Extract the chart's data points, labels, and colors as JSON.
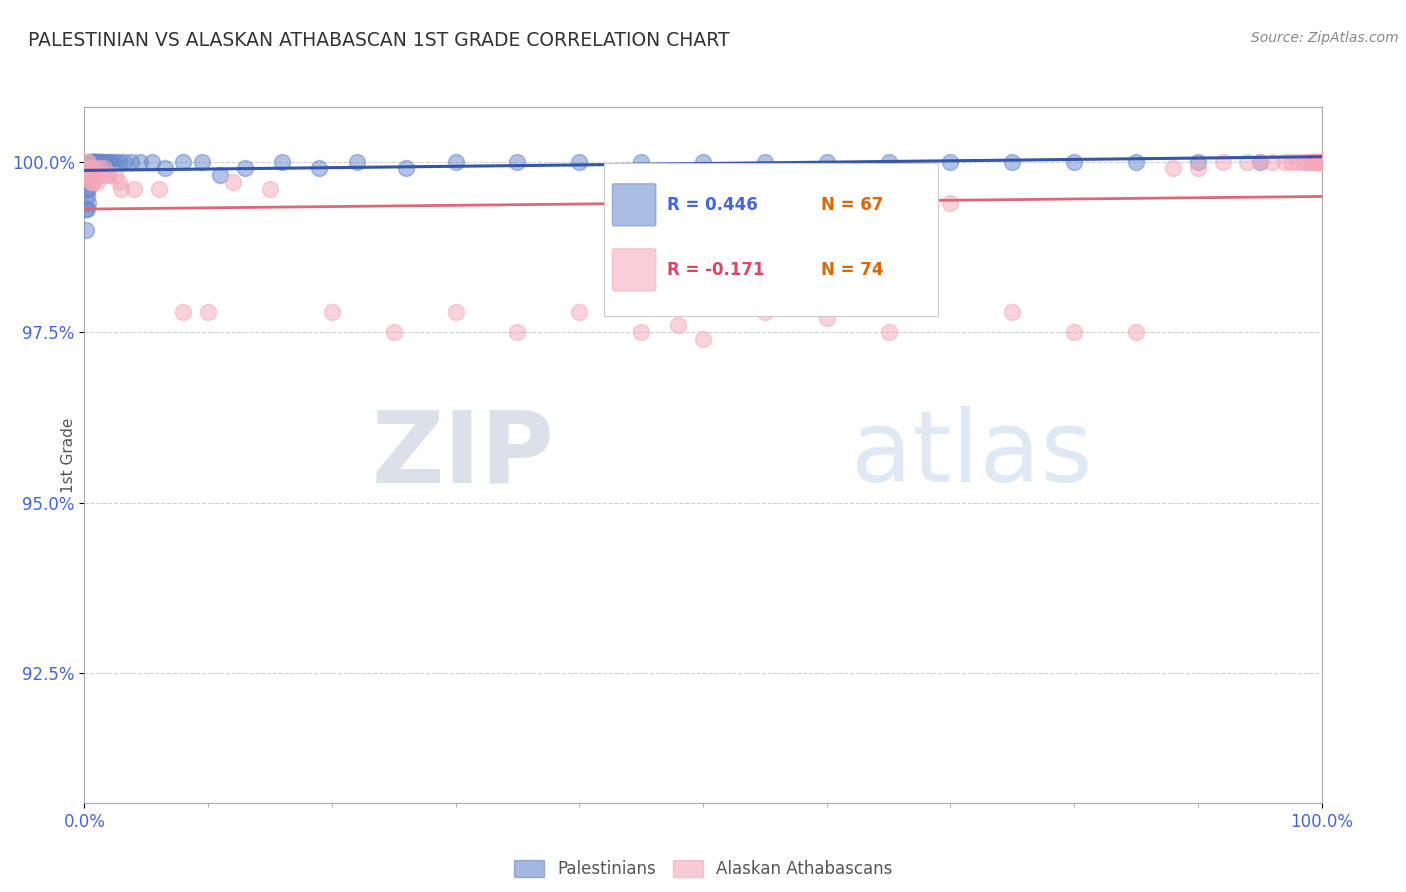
{
  "title": "PALESTINIAN VS ALASKAN ATHABASCAN 1ST GRADE CORRELATION CHART",
  "source": "Source: ZipAtlas.com",
  "ylabel": "1st Grade",
  "xlim": [
    0.0,
    1.0
  ],
  "ylim": [
    0.906,
    1.008
  ],
  "yticks": [
    0.925,
    0.95,
    0.975,
    1.0
  ],
  "ytick_labels": [
    "92.5%",
    "95.0%",
    "97.5%",
    "100.0%"
  ],
  "blue_color": "#6688cc",
  "pink_color": "#f4a8b8",
  "blue_line_color": "#3355aa",
  "pink_line_color": "#dd6677",
  "R_blue": 0.446,
  "N_blue": 67,
  "R_pink": -0.171,
  "N_pink": 74,
  "legend_R_blue_text": "R = 0.446",
  "legend_N_blue_text": "N = 67",
  "legend_R_pink_text": "R = -0.171",
  "legend_N_pink_text": "N = 74",
  "blue_x": [
    0.001,
    0.001,
    0.001,
    0.001,
    0.002,
    0.002,
    0.002,
    0.002,
    0.003,
    0.003,
    0.003,
    0.003,
    0.004,
    0.004,
    0.004,
    0.005,
    0.005,
    0.005,
    0.006,
    0.006,
    0.006,
    0.007,
    0.007,
    0.008,
    0.008,
    0.009,
    0.009,
    0.01,
    0.01,
    0.011,
    0.012,
    0.013,
    0.014,
    0.015,
    0.016,
    0.018,
    0.02,
    0.022,
    0.025,
    0.028,
    0.032,
    0.038,
    0.045,
    0.055,
    0.065,
    0.08,
    0.095,
    0.11,
    0.13,
    0.16,
    0.19,
    0.22,
    0.26,
    0.3,
    0.35,
    0.4,
    0.45,
    0.5,
    0.55,
    0.6,
    0.65,
    0.7,
    0.75,
    0.8,
    0.85,
    0.9,
    0.95
  ],
  "blue_y": [
    0.998,
    0.996,
    0.993,
    0.99,
    0.999,
    0.997,
    0.995,
    0.993,
    0.999,
    0.998,
    0.996,
    0.994,
    1.0,
    0.999,
    0.998,
    1.0,
    0.999,
    0.998,
    1.0,
    1.0,
    0.999,
    1.0,
    1.0,
    1.0,
    1.0,
    1.0,
    1.0,
    1.0,
    1.0,
    1.0,
    1.0,
    1.0,
    1.0,
    1.0,
    1.0,
    1.0,
    1.0,
    1.0,
    1.0,
    1.0,
    1.0,
    1.0,
    1.0,
    1.0,
    0.999,
    1.0,
    1.0,
    0.998,
    0.999,
    1.0,
    0.999,
    1.0,
    0.999,
    1.0,
    1.0,
    1.0,
    1.0,
    1.0,
    1.0,
    1.0,
    1.0,
    1.0,
    1.0,
    1.0,
    1.0,
    1.0,
    1.0
  ],
  "pink_x": [
    0.001,
    0.002,
    0.003,
    0.003,
    0.004,
    0.004,
    0.005,
    0.005,
    0.006,
    0.006,
    0.007,
    0.007,
    0.008,
    0.008,
    0.009,
    0.01,
    0.01,
    0.011,
    0.012,
    0.013,
    0.015,
    0.016,
    0.018,
    0.02,
    0.025,
    0.028,
    0.03,
    0.04,
    0.06,
    0.08,
    0.1,
    0.12,
    0.15,
    0.2,
    0.25,
    0.3,
    0.35,
    0.4,
    0.45,
    0.48,
    0.5,
    0.55,
    0.6,
    0.65,
    0.7,
    0.75,
    0.8,
    0.85,
    0.88,
    0.9,
    0.92,
    0.94,
    0.95,
    0.96,
    0.97,
    0.975,
    0.98,
    0.985,
    0.988,
    0.99,
    0.992,
    0.994,
    0.995,
    0.996,
    0.997,
    0.998,
    0.999,
    1.0,
    1.0,
    1.0,
    1.0,
    1.0,
    1.0,
    1.0
  ],
  "pink_y": [
    1.0,
    0.999,
    1.0,
    0.998,
    0.999,
    0.998,
    0.998,
    0.997,
    0.998,
    0.997,
    0.998,
    0.997,
    0.999,
    0.998,
    0.998,
    0.998,
    0.997,
    0.998,
    0.999,
    0.998,
    0.998,
    0.999,
    0.998,
    0.998,
    0.998,
    0.997,
    0.996,
    0.996,
    0.996,
    0.978,
    0.978,
    0.997,
    0.996,
    0.978,
    0.975,
    0.978,
    0.975,
    0.978,
    0.975,
    0.976,
    0.974,
    0.978,
    0.977,
    0.975,
    0.994,
    0.978,
    0.975,
    0.975,
    0.999,
    0.999,
    1.0,
    1.0,
    1.0,
    1.0,
    1.0,
    1.0,
    1.0,
    1.0,
    1.0,
    1.0,
    1.0,
    1.0,
    1.0,
    1.0,
    1.0,
    1.0,
    1.0,
    1.0,
    1.0,
    1.0,
    1.0,
    1.0,
    1.0,
    1.0
  ],
  "watermark_zip": "ZIP",
  "watermark_atlas": "atlas",
  "background_color": "#ffffff",
  "grid_color": "#cccccc",
  "title_color": "#333333",
  "ytick_color": "#4466dd",
  "xtick_color": "#4466dd",
  "source_color": "#888888",
  "legend_R_color_blue": "#4466dd",
  "legend_N_color_blue": "#dd6600",
  "legend_R_color_pink": "#dd4466",
  "legend_N_color_pink": "#dd6600"
}
